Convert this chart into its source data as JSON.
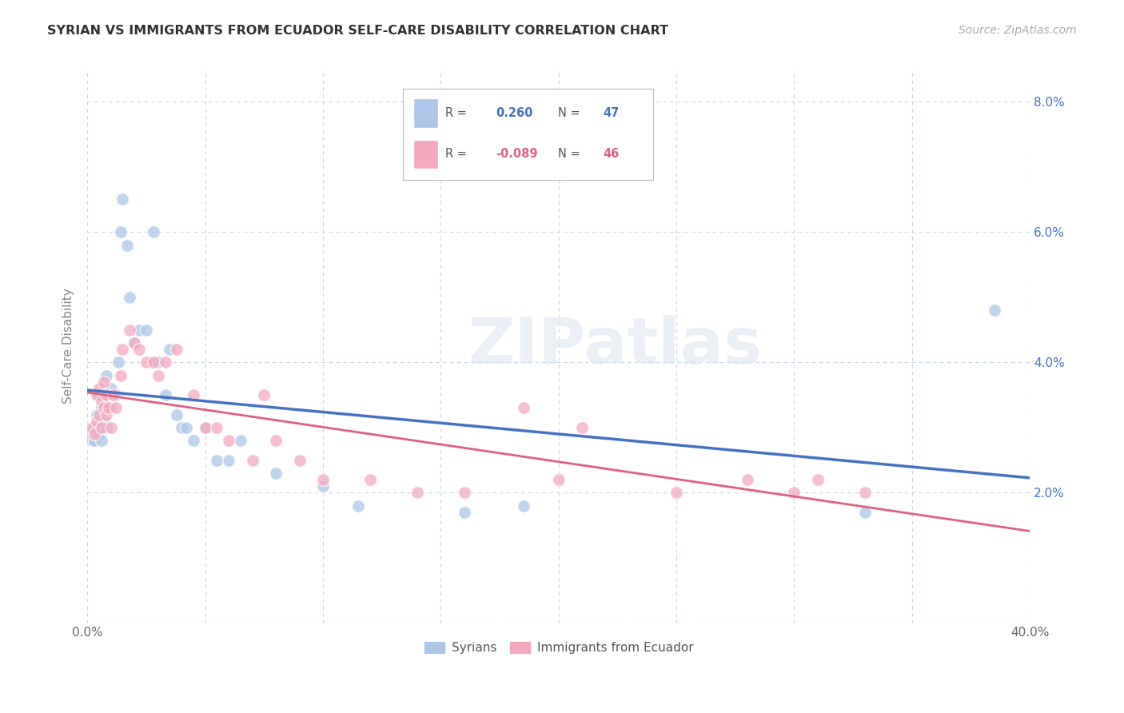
{
  "title": "SYRIAN VS IMMIGRANTS FROM ECUADOR SELF-CARE DISABILITY CORRELATION CHART",
  "source": "Source: ZipAtlas.com",
  "ylabel": "Self-Care Disability",
  "xlim": [
    0.0,
    0.4
  ],
  "ylim": [
    0.0,
    0.085
  ],
  "xticks": [
    0.0,
    0.05,
    0.1,
    0.15,
    0.2,
    0.25,
    0.3,
    0.35,
    0.4
  ],
  "yticks": [
    0.0,
    0.02,
    0.04,
    0.06,
    0.08
  ],
  "blue_color": "#4472c4",
  "pink_color": "#e06080",
  "blue_scatter_color": "#adc6e8",
  "pink_scatter_color": "#f4a8be",
  "background_color": "#ffffff",
  "grid_color": "#c8d4e8",
  "watermark": "ZIPatlas",
  "legend_blue_label": "Syrians",
  "legend_pink_label": "Immigrants from Ecuador",
  "legend_blue_R": "0.260",
  "legend_blue_N": "47",
  "legend_pink_R": "-0.089",
  "legend_pink_N": "46",
  "syrians_x": [
    0.001,
    0.002,
    0.003,
    0.003,
    0.004,
    0.004,
    0.005,
    0.005,
    0.005,
    0.006,
    0.006,
    0.006,
    0.007,
    0.007,
    0.008,
    0.008,
    0.009,
    0.01,
    0.01,
    0.012,
    0.013,
    0.014,
    0.015,
    0.017,
    0.018,
    0.02,
    0.022,
    0.025,
    0.028,
    0.03,
    0.033,
    0.035,
    0.038,
    0.04,
    0.042,
    0.045,
    0.05,
    0.055,
    0.06,
    0.065,
    0.08,
    0.1,
    0.115,
    0.16,
    0.185,
    0.33,
    0.385
  ],
  "syrians_y": [
    0.029,
    0.028,
    0.03,
    0.028,
    0.029,
    0.032,
    0.029,
    0.031,
    0.035,
    0.028,
    0.03,
    0.033,
    0.031,
    0.035,
    0.03,
    0.038,
    0.035,
    0.033,
    0.036,
    0.035,
    0.04,
    0.06,
    0.065,
    0.058,
    0.05,
    0.043,
    0.045,
    0.045,
    0.06,
    0.04,
    0.035,
    0.042,
    0.032,
    0.03,
    0.03,
    0.028,
    0.03,
    0.025,
    0.025,
    0.028,
    0.023,
    0.021,
    0.018,
    0.017,
    0.018,
    0.017,
    0.048
  ],
  "ecuador_x": [
    0.002,
    0.003,
    0.004,
    0.004,
    0.005,
    0.005,
    0.006,
    0.006,
    0.007,
    0.007,
    0.008,
    0.008,
    0.009,
    0.01,
    0.011,
    0.012,
    0.014,
    0.015,
    0.018,
    0.02,
    0.022,
    0.025,
    0.028,
    0.03,
    0.033,
    0.038,
    0.045,
    0.05,
    0.055,
    0.06,
    0.07,
    0.075,
    0.08,
    0.09,
    0.1,
    0.12,
    0.14,
    0.16,
    0.185,
    0.2,
    0.21,
    0.25,
    0.28,
    0.3,
    0.31,
    0.33
  ],
  "ecuador_y": [
    0.03,
    0.029,
    0.031,
    0.035,
    0.032,
    0.036,
    0.03,
    0.034,
    0.033,
    0.037,
    0.032,
    0.035,
    0.033,
    0.03,
    0.035,
    0.033,
    0.038,
    0.042,
    0.045,
    0.043,
    0.042,
    0.04,
    0.04,
    0.038,
    0.04,
    0.042,
    0.035,
    0.03,
    0.03,
    0.028,
    0.025,
    0.035,
    0.028,
    0.025,
    0.022,
    0.022,
    0.02,
    0.02,
    0.033,
    0.022,
    0.03,
    0.02,
    0.022,
    0.02,
    0.022,
    0.02
  ]
}
